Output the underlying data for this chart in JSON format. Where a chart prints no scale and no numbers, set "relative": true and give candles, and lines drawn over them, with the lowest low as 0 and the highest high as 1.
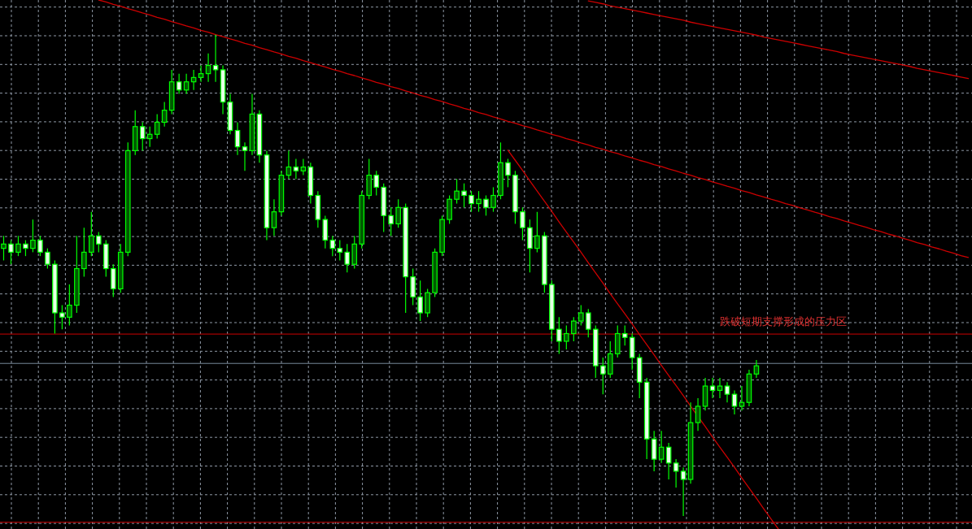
{
  "chart_data": {
    "type": "candlestick",
    "relative": true,
    "grid": true,
    "color": "#00ff00",
    "categories": [
      null,
      null,
      null,
      null,
      null,
      null,
      null,
      null,
      null,
      null,
      null,
      null,
      null,
      null,
      null,
      null,
      null,
      null,
      null,
      null,
      null,
      null,
      null,
      null,
      null,
      null,
      null,
      null,
      null,
      null,
      null,
      null,
      null,
      null,
      null,
      null,
      null,
      null,
      null,
      null,
      null,
      null,
      null,
      null,
      null,
      null,
      null,
      null,
      null,
      null,
      null,
      null,
      null,
      null,
      null,
      null,
      null,
      null,
      null,
      null,
      null,
      null,
      null,
      null,
      null,
      null,
      null,
      null,
      null,
      null,
      null,
      null,
      null,
      null,
      null,
      null,
      null,
      null,
      null,
      null,
      null,
      null,
      null,
      null,
      null,
      null,
      null,
      null,
      null,
      null,
      null,
      null,
      null,
      null,
      null,
      null,
      null,
      null,
      null,
      null,
      null,
      null,
      null,
      null,
      null,
      null,
      null,
      null,
      null,
      null,
      null,
      null,
      null,
      null,
      null,
      null,
      null,
      null,
      null,
      null,
      null,
      null,
      null,
      null,
      null,
      null,
      null,
      null,
      null,
      null,
      null,
      null,
      null
    ],
    "ohlc": [
      [
        0.556,
        0.582,
        0.531,
        0.565
      ],
      [
        0.565,
        0.573,
        0.523,
        0.548
      ],
      [
        0.548,
        0.582,
        0.54,
        0.565
      ],
      [
        0.565,
        0.573,
        0.54,
        0.556
      ],
      [
        0.556,
        0.616,
        0.548,
        0.573
      ],
      [
        0.573,
        0.582,
        0.54,
        0.548
      ],
      [
        0.548,
        0.556,
        0.514,
        0.523
      ],
      [
        0.523,
        0.531,
        0.379,
        0.422
      ],
      [
        0.422,
        0.438,
        0.388,
        0.413
      ],
      [
        0.413,
        0.481,
        0.396,
        0.438
      ],
      [
        0.438,
        0.582,
        0.422,
        0.514
      ],
      [
        0.514,
        0.599,
        0.497,
        0.548
      ],
      [
        0.548,
        0.632,
        0.54,
        0.582
      ],
      [
        0.582,
        0.59,
        0.548,
        0.565
      ],
      [
        0.565,
        0.573,
        0.497,
        0.514
      ],
      [
        0.514,
        0.523,
        0.455,
        0.472
      ],
      [
        0.472,
        0.565,
        0.464,
        0.548
      ],
      [
        0.548,
        0.776,
        0.54,
        0.759
      ],
      [
        0.759,
        0.843,
        0.75,
        0.809
      ],
      [
        0.809,
        0.818,
        0.759,
        0.784
      ],
      [
        0.784,
        0.809,
        0.767,
        0.793
      ],
      [
        0.793,
        0.835,
        0.784,
        0.818
      ],
      [
        0.818,
        0.86,
        0.809,
        0.843
      ],
      [
        0.843,
        0.927,
        0.835,
        0.902
      ],
      [
        0.902,
        0.919,
        0.877,
        0.885
      ],
      [
        0.885,
        0.919,
        0.877,
        0.902
      ],
      [
        0.902,
        0.927,
        0.885,
        0.911
      ],
      [
        0.911,
        0.936,
        0.902,
        0.919
      ],
      [
        0.919,
        0.961,
        0.902,
        0.936
      ],
      [
        0.936,
        1.0,
        0.902,
        0.927
      ],
      [
        0.927,
        0.936,
        0.835,
        0.86
      ],
      [
        0.86,
        0.877,
        0.793,
        0.801
      ],
      [
        0.801,
        0.818,
        0.75,
        0.767
      ],
      [
        0.767,
        0.776,
        0.717,
        0.759
      ],
      [
        0.759,
        0.877,
        0.75,
        0.835
      ],
      [
        0.835,
        0.843,
        0.734,
        0.75
      ],
      [
        0.75,
        0.759,
        0.573,
        0.599
      ],
      [
        0.599,
        0.658,
        0.582,
        0.632
      ],
      [
        0.632,
        0.717,
        0.624,
        0.708
      ],
      [
        0.708,
        0.759,
        0.7,
        0.725
      ],
      [
        0.725,
        0.742,
        0.7,
        0.717
      ],
      [
        0.717,
        0.742,
        0.708,
        0.725
      ],
      [
        0.725,
        0.734,
        0.649,
        0.666
      ],
      [
        0.666,
        0.675,
        0.599,
        0.616
      ],
      [
        0.616,
        0.624,
        0.556,
        0.573
      ],
      [
        0.573,
        0.582,
        0.54,
        0.556
      ],
      [
        0.556,
        0.573,
        0.531,
        0.548
      ],
      [
        0.548,
        0.565,
        0.506,
        0.523
      ],
      [
        0.523,
        0.582,
        0.514,
        0.565
      ],
      [
        0.565,
        0.675,
        0.556,
        0.666
      ],
      [
        0.666,
        0.742,
        0.658,
        0.708
      ],
      [
        0.708,
        0.717,
        0.666,
        0.683
      ],
      [
        0.683,
        0.691,
        0.59,
        0.624
      ],
      [
        0.624,
        0.641,
        0.582,
        0.607
      ],
      [
        0.607,
        0.658,
        0.599,
        0.641
      ],
      [
        0.641,
        0.649,
        0.422,
        0.497
      ],
      [
        0.497,
        0.514,
        0.438,
        0.455
      ],
      [
        0.455,
        0.489,
        0.405,
        0.422
      ],
      [
        0.422,
        0.472,
        0.413,
        0.464
      ],
      [
        0.464,
        0.556,
        0.455,
        0.548
      ],
      [
        0.548,
        0.624,
        0.54,
        0.616
      ],
      [
        0.616,
        0.666,
        0.607,
        0.658
      ],
      [
        0.658,
        0.7,
        0.649,
        0.675
      ],
      [
        0.675,
        0.691,
        0.641,
        0.666
      ],
      [
        0.666,
        0.675,
        0.632,
        0.649
      ],
      [
        0.649,
        0.675,
        0.632,
        0.658
      ],
      [
        0.658,
        0.666,
        0.624,
        0.641
      ],
      [
        0.641,
        0.683,
        0.632,
        0.666
      ],
      [
        0.666,
        0.776,
        0.658,
        0.734
      ],
      [
        0.734,
        0.742,
        0.683,
        0.708
      ],
      [
        0.708,
        0.717,
        0.607,
        0.632
      ],
      [
        0.632,
        0.641,
        0.573,
        0.599
      ],
      [
        0.599,
        0.616,
        0.506,
        0.556
      ],
      [
        0.556,
        0.632,
        0.548,
        0.582
      ],
      [
        0.582,
        0.59,
        0.464,
        0.481
      ],
      [
        0.481,
        0.489,
        0.363,
        0.388
      ],
      [
        0.388,
        0.413,
        0.337,
        0.363
      ],
      [
        0.363,
        0.396,
        0.346,
        0.379
      ],
      [
        0.379,
        0.413,
        0.363,
        0.405
      ],
      [
        0.405,
        0.438,
        0.396,
        0.422
      ],
      [
        0.422,
        0.43,
        0.371,
        0.388
      ],
      [
        0.388,
        0.396,
        0.287,
        0.312
      ],
      [
        0.312,
        0.329,
        0.253,
        0.295
      ],
      [
        0.295,
        0.363,
        0.287,
        0.337
      ],
      [
        0.337,
        0.396,
        0.329,
        0.379
      ],
      [
        0.379,
        0.396,
        0.354,
        0.371
      ],
      [
        0.371,
        0.379,
        0.304,
        0.329
      ],
      [
        0.329,
        0.337,
        0.245,
        0.278
      ],
      [
        0.278,
        0.287,
        0.118,
        0.16
      ],
      [
        0.16,
        0.177,
        0.093,
        0.118
      ],
      [
        0.118,
        0.177,
        0.11,
        0.143
      ],
      [
        0.143,
        0.152,
        0.076,
        0.11
      ],
      [
        0.11,
        0.118,
        0.059,
        0.093
      ],
      [
        0.093,
        0.101,
        0.0,
        0.076
      ],
      [
        0.076,
        0.236,
        0.067,
        0.194
      ],
      [
        0.194,
        0.245,
        0.177,
        0.228
      ],
      [
        0.228,
        0.287,
        0.219,
        0.27
      ],
      [
        0.27,
        0.287,
        0.245,
        0.261
      ],
      [
        0.261,
        0.287,
        0.245,
        0.27
      ],
      [
        0.27,
        0.278,
        0.236,
        0.253
      ],
      [
        0.253,
        0.261,
        0.211,
        0.228
      ],
      [
        0.228,
        0.27,
        0.219,
        0.236
      ],
      [
        0.236,
        0.304,
        0.228,
        0.295
      ],
      [
        0.295,
        0.324,
        0.287,
        0.312
      ],
      null,
      null,
      null,
      null,
      null,
      null,
      null,
      null,
      null,
      null,
      null,
      null,
      null,
      null,
      null,
      null,
      null,
      null,
      null,
      null,
      null,
      null,
      null,
      null,
      null,
      null,
      null,
      null,
      null
    ],
    "series": [
      {
        "type": "line",
        "color": "#cc0000",
        "values": [
          null,
          null,
          null,
          null,
          null,
          null,
          null,
          null,
          null,
          null,
          null,
          null,
          null,
          1.072,
          1.068,
          1.063,
          1.059,
          1.054,
          1.05,
          1.045,
          1.041,
          1.036,
          1.032,
          1.027,
          1.023,
          1.018,
          1.014,
          1.009,
          1.005,
          1.0,
          0.996,
          0.991,
          0.987,
          0.982,
          0.978,
          0.973,
          0.969,
          0.964,
          0.96,
          0.955,
          0.951,
          0.946,
          0.942,
          0.937,
          0.933,
          0.928,
          0.924,
          0.919,
          0.915,
          0.91,
          0.906,
          0.901,
          0.897,
          0.892,
          0.888,
          0.883,
          0.879,
          0.874,
          0.87,
          0.865,
          0.861,
          0.856,
          0.852,
          0.847,
          0.843,
          0.838,
          0.834,
          0.829,
          0.825,
          0.82,
          0.816,
          0.811,
          0.807,
          0.802,
          0.798,
          0.793,
          0.789,
          0.784,
          0.78,
          0.775,
          0.771,
          0.766,
          0.762,
          0.757,
          0.753,
          0.748,
          0.744,
          0.739,
          0.735,
          0.73,
          0.726,
          0.721,
          0.717,
          0.712,
          0.708,
          0.703,
          0.699,
          0.694,
          0.69,
          0.685,
          0.681,
          0.676,
          0.672,
          0.667,
          0.663,
          0.658,
          0.654,
          0.649,
          0.645,
          0.64,
          0.636,
          0.631,
          0.627,
          0.622,
          0.618,
          0.613,
          0.609,
          0.604,
          0.6,
          0.595,
          0.591,
          0.586,
          0.582,
          0.577,
          0.573,
          0.568,
          0.564,
          0.559,
          0.555,
          0.55,
          0.546,
          0.541,
          0.537
        ]
      },
      {
        "type": "line",
        "color": "#cc0000",
        "values": [
          null,
          null,
          null,
          null,
          null,
          null,
          null,
          null,
          null,
          null,
          null,
          null,
          null,
          null,
          null,
          null,
          null,
          null,
          null,
          null,
          null,
          null,
          null,
          null,
          null,
          null,
          null,
          null,
          null,
          null,
          null,
          null,
          null,
          null,
          null,
          null,
          null,
          null,
          null,
          null,
          null,
          null,
          null,
          null,
          null,
          null,
          null,
          null,
          null,
          null,
          null,
          null,
          null,
          null,
          null,
          null,
          null,
          null,
          null,
          null,
          null,
          null,
          null,
          null,
          null,
          null,
          null,
          null,
          null,
          null,
          null,
          null,
          null,
          null,
          null,
          null,
          null,
          null,
          null,
          null,
          1.07,
          1.067,
          1.064,
          1.06,
          1.057,
          1.054,
          1.051,
          1.048,
          1.045,
          1.042,
          1.039,
          1.036,
          1.033,
          1.03,
          1.026,
          1.023,
          1.02,
          1.017,
          1.014,
          1.011,
          1.008,
          1.005,
          1.002,
          0.999,
          0.995,
          0.992,
          0.989,
          0.986,
          0.983,
          0.98,
          0.977,
          0.974,
          0.971,
          0.968,
          0.965,
          0.961,
          0.958,
          0.955,
          0.952,
          0.949,
          0.946,
          0.943,
          0.94,
          0.937,
          0.934,
          0.93,
          0.927,
          0.924,
          0.921,
          0.918,
          0.915,
          0.912,
          0.909
        ]
      },
      {
        "type": "line",
        "color": "#cc0000",
        "values": [
          null,
          null,
          null,
          null,
          null,
          null,
          null,
          null,
          null,
          null,
          null,
          null,
          null,
          null,
          null,
          null,
          null,
          null,
          null,
          null,
          null,
          null,
          null,
          null,
          null,
          null,
          null,
          null,
          null,
          null,
          null,
          null,
          null,
          null,
          null,
          null,
          null,
          null,
          null,
          null,
          null,
          null,
          null,
          null,
          null,
          null,
          null,
          null,
          null,
          null,
          null,
          null,
          null,
          null,
          null,
          null,
          null,
          null,
          null,
          null,
          null,
          null,
          null,
          null,
          null,
          null,
          null,
          null,
          null,
          0.76,
          0.739,
          0.718,
          0.696,
          0.675,
          0.654,
          0.633,
          0.611,
          0.59,
          0.569,
          0.548,
          0.526,
          0.505,
          0.484,
          0.462,
          0.441,
          0.42,
          0.399,
          0.377,
          0.356,
          0.335,
          0.313,
          0.292,
          0.271,
          0.25,
          0.228,
          0.207,
          0.186,
          0.164,
          0.143,
          0.122,
          0.101,
          0.079,
          0.058,
          0.037,
          0.015,
          -0.006,
          -0.027,
          null,
          null,
          null,
          null,
          null,
          null,
          null,
          null,
          null,
          null,
          null,
          null,
          null,
          null,
          null,
          null,
          null,
          null,
          null,
          null,
          null,
          null,
          null,
          null,
          null,
          null
        ]
      }
    ],
    "ref_lines": [
      {
        "axis": "y",
        "value": 0.378,
        "color": "#cc0000"
      },
      {
        "axis": "y",
        "value": 0.317,
        "color": "#778899"
      },
      {
        "axis": "y",
        "value": -0.013,
        "color": "#cc0000"
      }
    ],
    "annotations": [
      {
        "text": "跌破短期支撑形成的压力区",
        "y": 0.378
      }
    ]
  }
}
